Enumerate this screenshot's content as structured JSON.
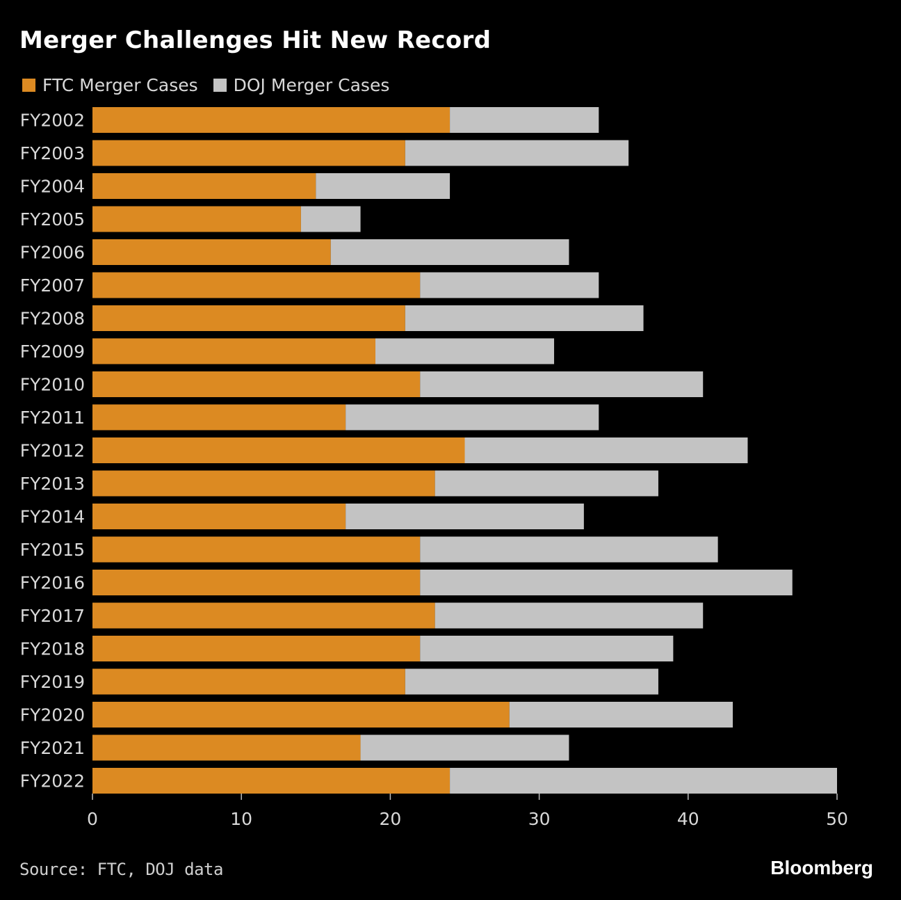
{
  "title": "Merger Challenges Hit New Record",
  "legend": {
    "ftc_label": "FTC Merger Cases",
    "doj_label": "DOJ Merger Cases"
  },
  "colors": {
    "ftc": "#dc8a22",
    "doj": "#c3c3c3",
    "axis_text": "#d9d9d9"
  },
  "source": "Source: FTC, DOJ data",
  "brand": "Bloomberg",
  "chart_data": {
    "type": "bar",
    "orientation": "horizontal",
    "stacked": true,
    "title": "Merger Challenges Hit New Record",
    "categories": [
      "FY2002",
      "FY2003",
      "FY2004",
      "FY2005",
      "FY2006",
      "FY2007",
      "FY2008",
      "FY2009",
      "FY2010",
      "FY2011",
      "FY2012",
      "FY2013",
      "FY2014",
      "FY2015",
      "FY2016",
      "FY2017",
      "FY2018",
      "FY2019",
      "FY2020",
      "FY2021",
      "FY2022"
    ],
    "series": [
      {
        "name": "FTC Merger Cases",
        "values": [
          24,
          21,
          15,
          14,
          16,
          22,
          21,
          19,
          22,
          17,
          25,
          23,
          17,
          22,
          22,
          23,
          22,
          21,
          28,
          18,
          24
        ]
      },
      {
        "name": "DOJ Merger Cases",
        "values": [
          10,
          15,
          9,
          4,
          16,
          12,
          16,
          12,
          19,
          17,
          19,
          15,
          16,
          20,
          25,
          18,
          17,
          17,
          15,
          14,
          26
        ]
      }
    ],
    "xlim": [
      0,
      50
    ],
    "xticks": [
      0,
      10,
      20,
      30,
      40,
      50
    ],
    "xlabel": "",
    "ylabel": "",
    "legend_position": "top-left",
    "grid": false
  }
}
